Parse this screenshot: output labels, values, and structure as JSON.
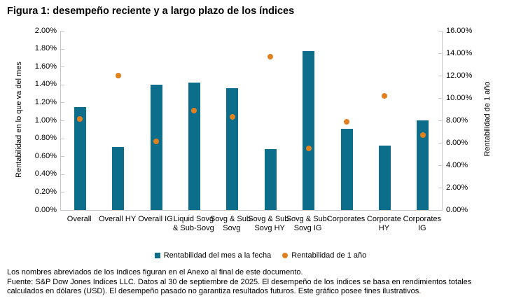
{
  "title": "Figura 1: desempeño reciente y a largo plazo de los índices",
  "chart_data": {
    "type": "bar",
    "categories": [
      "Overall",
      "Overall HY",
      "Overall IG",
      "Liquid Sovg & Sub-Sovg",
      "Sovg & Sub-Sovg",
      "Sovg & Sub-Sovg HY",
      "Sovg & Sub-Sovg IG",
      "Corporates",
      "Corporate HY",
      "Corporates IG"
    ],
    "series": [
      {
        "name": "Rentabilidad del mes a la fecha",
        "type": "bar",
        "axis": "left",
        "color": "#0d6e8c",
        "values": [
          1.15,
          0.7,
          1.4,
          1.42,
          1.36,
          0.68,
          1.77,
          0.91,
          0.72,
          1.0
        ]
      },
      {
        "name": "Rentabilidad de 1 año",
        "type": "scatter",
        "axis": "right",
        "color": "#e2801f",
        "values": [
          8.1,
          12.0,
          6.1,
          8.9,
          8.3,
          13.7,
          5.5,
          7.9,
          10.2,
          6.7
        ]
      }
    ],
    "left_axis": {
      "label": "Rentabilidad en lo que va del mes",
      "min": 0,
      "max": 2,
      "ticks": [
        "2.00%",
        "1.80%",
        "1.60%",
        "1.40%",
        "1.20%",
        "1.00%",
        "0.80%",
        "0.60%",
        "0.40%",
        "0.20%",
        "0.00%"
      ]
    },
    "right_axis": {
      "label": "Rentabilidad de 1 año",
      "min": 0,
      "max": 16,
      "ticks": [
        "16.00%",
        "14.00%",
        "12.00%",
        "10.00%",
        "8.00%",
        "6.00%",
        "4.00%",
        "2.00%",
        "0.00%"
      ]
    },
    "legend_position": "bottom",
    "grid": false
  },
  "footer": {
    "note": "Los nombres abreviados de los índices figuran en el Anexo al final de este documento.",
    "source": "Fuente: S&P Dow Jones Indices LLC. Datos al 30 de septiembre de 2025. El desempeño de los índices se basa en rendimientos totales calculados en dólares (USD). El desempeño pasado no garantiza resultados futuros. Este gráfico posee fines ilustrativos",
    "source_period": "."
  }
}
